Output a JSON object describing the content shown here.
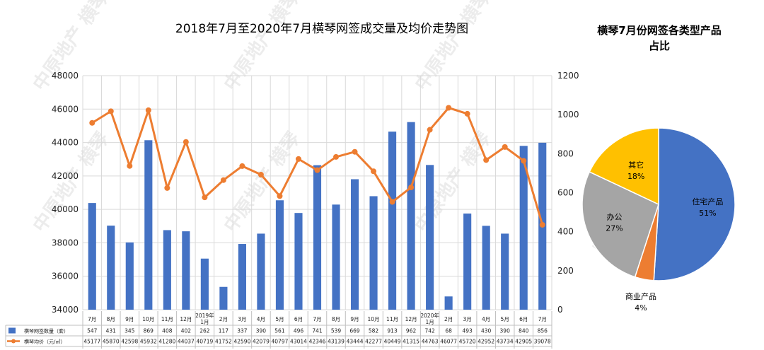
{
  "chart_data": [
    {
      "type": "bar+line",
      "title": "2018年7月至2020年7月横琴网签成交量及均价走势图",
      "categories": [
        "7月",
        "8月",
        "9月",
        "10月",
        "11月",
        "12月",
        "2019年\n1月",
        "2月",
        "3月",
        "4月",
        "5月",
        "6月",
        "7月",
        "8月",
        "9月",
        "10月",
        "11月",
        "12月",
        "2020年\n1月",
        "2月",
        "3月",
        "4月",
        "5月",
        "6月",
        "7月"
      ],
      "series": [
        {
          "name": "横琴网签数量（套）",
          "type": "bar",
          "axis": "right",
          "color": "#4472c4",
          "values": [
            547,
            431,
            345,
            869,
            408,
            402,
            262,
            117,
            337,
            390,
            561,
            496,
            741,
            539,
            669,
            582,
            913,
            962,
            742,
            68,
            493,
            430,
            390,
            840,
            856
          ]
        },
        {
          "name": "横琴均价（元/㎡）",
          "type": "line",
          "axis": "left",
          "color": "#ed7d31",
          "values": [
            45177,
            45870,
            42598,
            45932,
            41280,
            44037,
            40719,
            41752,
            42590,
            42079,
            40797,
            43014,
            42346,
            43139,
            43444,
            42277,
            40449,
            41315,
            44763,
            46077,
            45720,
            42952,
            43734,
            42905,
            39078
          ]
        }
      ],
      "y_left": {
        "min": 34000,
        "max": 48000,
        "ticks": [
          34000,
          36000,
          38000,
          40000,
          42000,
          44000,
          46000,
          48000
        ]
      },
      "y_right": {
        "min": 0,
        "max": 1200,
        "ticks": [
          0,
          200,
          400,
          600,
          800,
          1000,
          1200
        ]
      },
      "grid": true,
      "legend": "data-table-bottom"
    },
    {
      "type": "pie",
      "title": "横琴7月份网签各类型产品占比",
      "slices": [
        {
          "label": "住宅产品",
          "value": 51,
          "display": "51%",
          "color": "#4472c4"
        },
        {
          "label": "商业产品",
          "value": 4,
          "display": "4%",
          "color": "#ed7d31"
        },
        {
          "label": "办公",
          "value": 27,
          "display": "27%",
          "color": "#a5a5a5"
        },
        {
          "label": "其它",
          "value": 18,
          "display": "18%",
          "color": "#ffc000"
        }
      ]
    }
  ],
  "watermark": "中原地产 横琴"
}
